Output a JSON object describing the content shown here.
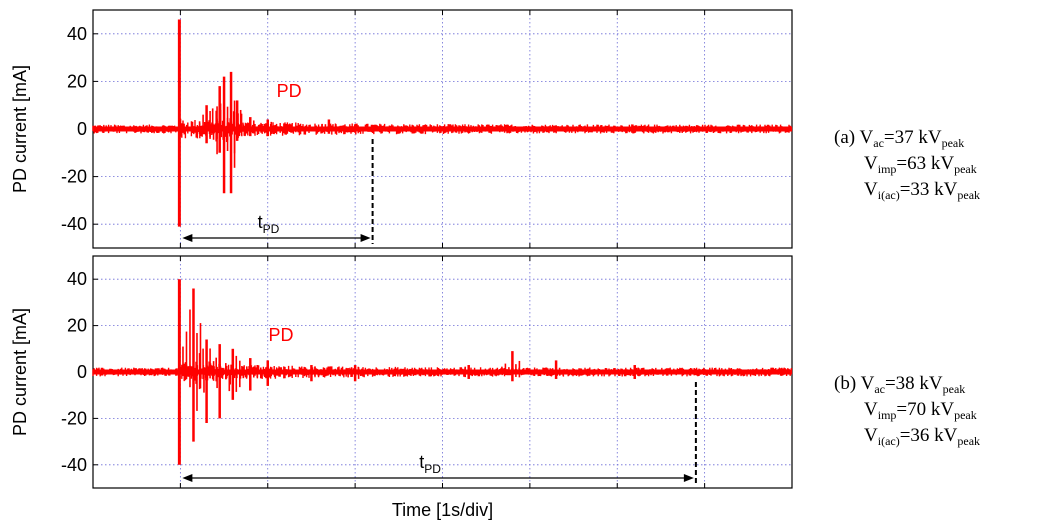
{
  "chart_data": [
    {
      "type": "line",
      "panel": "a",
      "ylabel": "PD current [mA]",
      "yticks": [
        "40",
        "20",
        "0",
        "-20",
        "-40"
      ],
      "ylim": [
        -50,
        50
      ],
      "x_divisions": 8,
      "grid": true,
      "series_label": "PD",
      "series_color": "#ff0000",
      "impulse_time_div": 1.0,
      "impulse_peak": [
        46,
        -41
      ],
      "pd_bursts": [
        {
          "t": 1.3,
          "min": -6,
          "max": 10
        },
        {
          "t": 1.45,
          "min": -10,
          "max": 18
        },
        {
          "t": 1.5,
          "min": -27,
          "max": 22
        },
        {
          "t": 1.58,
          "min": -27,
          "max": 24
        },
        {
          "t": 1.65,
          "min": -5,
          "max": 12
        },
        {
          "t": 1.8,
          "min": -3,
          "max": 5
        },
        {
          "t": 2.0,
          "min": -3,
          "max": 4
        },
        {
          "t": 2.7,
          "min": -2,
          "max": 4
        }
      ],
      "pd_end_time_div": 3.2,
      "tpd_label": "t",
      "tpd_sub": "PD"
    },
    {
      "type": "line",
      "panel": "b",
      "ylabel": "PD current [mA]",
      "yticks": [
        "40",
        "20",
        "0",
        "-20",
        "-40"
      ],
      "ylim": [
        -50,
        50
      ],
      "x_divisions": 8,
      "grid": true,
      "series_label": "PD",
      "series_color": "#ff0000",
      "xlabel": "Time [1s/div]",
      "impulse_time_div": 1.0,
      "impulse_peak": [
        40,
        -40
      ],
      "pd_bursts": [
        {
          "t": 1.15,
          "min": -30,
          "max": 36
        },
        {
          "t": 1.3,
          "min": -22,
          "max": 14
        },
        {
          "t": 1.45,
          "min": -20,
          "max": 12
        },
        {
          "t": 1.6,
          "min": -12,
          "max": 10
        },
        {
          "t": 1.8,
          "min": -8,
          "max": 6
        },
        {
          "t": 2.0,
          "min": -6,
          "max": 5
        },
        {
          "t": 2.5,
          "min": -4,
          "max": 3
        },
        {
          "t": 3.0,
          "min": -4,
          "max": 3
        },
        {
          "t": 4.3,
          "min": -3,
          "max": 3
        },
        {
          "t": 4.8,
          "min": -4,
          "max": 9
        },
        {
          "t": 5.3,
          "min": -3,
          "max": 5
        },
        {
          "t": 6.2,
          "min": -3,
          "max": 3
        }
      ],
      "pd_end_time_div": 6.9,
      "tpd_label": "t",
      "tpd_sub": "PD"
    }
  ],
  "annotations": [
    {
      "tag": "(a)",
      "vac": {
        "sym": "V",
        "sub": "ac",
        "val": "=37 kV",
        "unit_sub": "peak"
      },
      "vimp": {
        "sym": "V",
        "sub": "imp",
        "val": "=63 kV",
        "unit_sub": "peak"
      },
      "viac": {
        "sym": "V",
        "sub": "i(ac)",
        "val": "=33 kV",
        "unit_sub": "peak"
      }
    },
    {
      "tag": "(b)",
      "vac": {
        "sym": "V",
        "sub": "ac",
        "val": "=38 kV",
        "unit_sub": "peak"
      },
      "vimp": {
        "sym": "V",
        "sub": "imp",
        "val": "=70 kV",
        "unit_sub": "peak"
      },
      "viac": {
        "sym": "V",
        "sub": "i(ac)",
        "val": "=36 kV",
        "unit_sub": "peak"
      }
    }
  ]
}
